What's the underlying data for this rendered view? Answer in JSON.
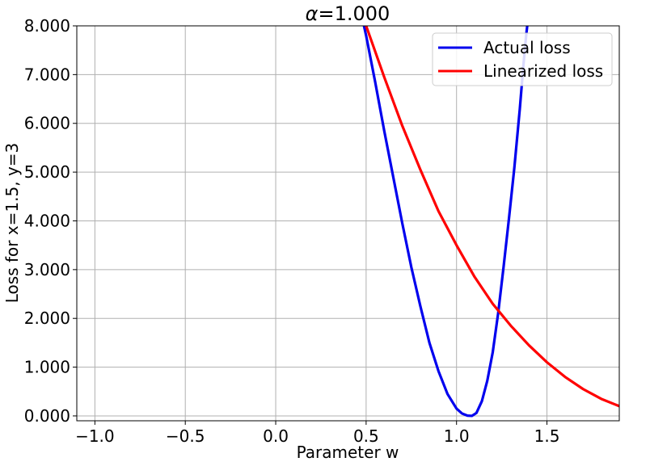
{
  "chart_data": {
    "type": "line",
    "title_prefix": "α",
    "title_value": "=1.000",
    "xlabel": "Parameter w",
    "ylabel": "Loss for x=1.5, y=3",
    "xlim": [
      -1.1,
      1.9
    ],
    "ylim": [
      -0.1,
      8.0
    ],
    "xticks": [
      -1.0,
      -0.5,
      0.0,
      0.5,
      1.0,
      1.5
    ],
    "xtick_labels": [
      "−1.0",
      "−0.5",
      "0.0",
      "0.5",
      "1.0",
      "1.5"
    ],
    "yticks": [
      0,
      1,
      2,
      3,
      4,
      5,
      6,
      7,
      8
    ],
    "ytick_labels": [
      "0.000",
      "1.000",
      "2.000",
      "3.000",
      "4.000",
      "5.000",
      "6.000",
      "7.000",
      "8.000"
    ],
    "grid": true,
    "legend_placement": "upper-right",
    "series": [
      {
        "name": "Actual loss",
        "color": "#0000ee",
        "x": [
          0.47,
          0.5,
          0.55,
          0.6,
          0.65,
          0.7,
          0.75,
          0.8,
          0.85,
          0.9,
          0.95,
          1.0,
          1.03,
          1.06,
          1.085,
          1.11,
          1.14,
          1.17,
          1.2,
          1.23,
          1.26,
          1.29,
          1.32,
          1.35,
          1.37,
          1.385,
          1.4
        ],
        "y": [
          8.3,
          7.8,
          6.85,
          5.85,
          4.9,
          3.95,
          3.05,
          2.25,
          1.5,
          0.92,
          0.45,
          0.15,
          0.05,
          0.005,
          0.0,
          0.06,
          0.3,
          0.72,
          1.3,
          2.1,
          3.05,
          4.05,
          5.1,
          6.3,
          7.2,
          7.8,
          8.3
        ]
      },
      {
        "name": "Linearized loss",
        "color": "#ff0000",
        "x": [
          0.48,
          0.5,
          0.6,
          0.7,
          0.8,
          0.9,
          1.0,
          1.1,
          1.2,
          1.3,
          1.4,
          1.5,
          1.6,
          1.7,
          1.8,
          1.9
        ],
        "y": [
          8.2,
          8.0,
          6.95,
          5.95,
          5.05,
          4.2,
          3.5,
          2.85,
          2.3,
          1.85,
          1.45,
          1.1,
          0.8,
          0.55,
          0.35,
          0.2
        ]
      }
    ]
  }
}
